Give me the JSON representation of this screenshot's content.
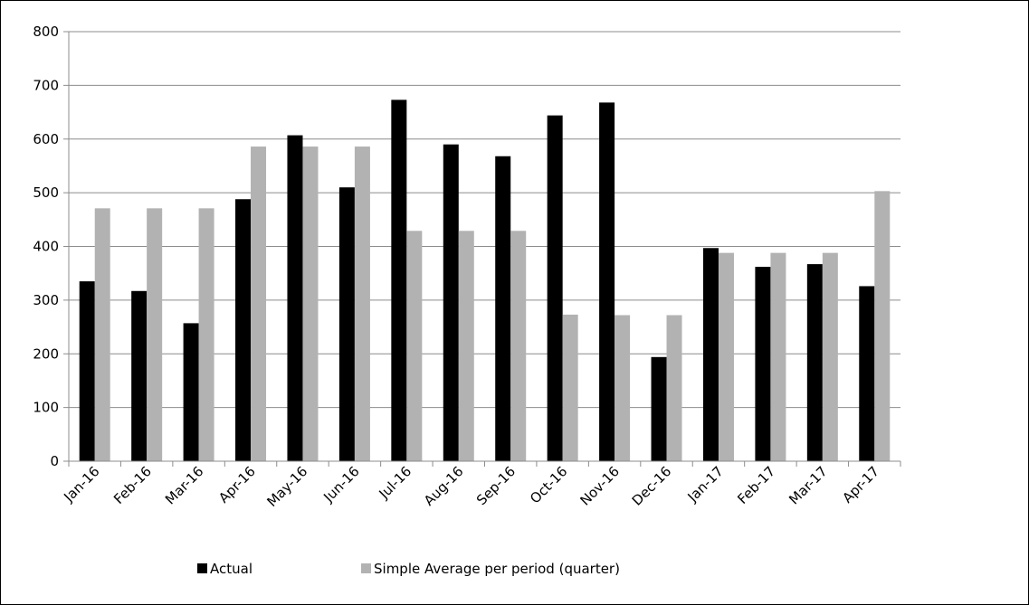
{
  "chart_data": {
    "type": "bar",
    "title": "",
    "xlabel": "",
    "ylabel": "",
    "ylim": [
      0,
      800
    ],
    "yticks": [
      0,
      100,
      200,
      300,
      400,
      500,
      600,
      700,
      800
    ],
    "grid": true,
    "legend_position": "bottom",
    "categories": [
      "Jan-16",
      "Feb-16",
      "Mar-16",
      "Apr-16",
      "May-16",
      "Jun-16",
      "Jul-16",
      "Aug-16",
      "Sep-16",
      "Oct-16",
      "Nov-16",
      "Dec-16",
      "Jan-17",
      "Feb-17",
      "Mar-17",
      "Apr-17"
    ],
    "series": [
      {
        "name": "Actual",
        "color": "#000000",
        "values": [
          335,
          317,
          257,
          488,
          607,
          510,
          673,
          590,
          568,
          644,
          668,
          194,
          397,
          362,
          367,
          326
        ]
      },
      {
        "name": "Simple Average per period (quarter)",
        "color": "#b2b2b2",
        "values": [
          471,
          471,
          471,
          586,
          586,
          586,
          429,
          429,
          429,
          273,
          272,
          272,
          388,
          388,
          388,
          503
        ]
      }
    ]
  }
}
